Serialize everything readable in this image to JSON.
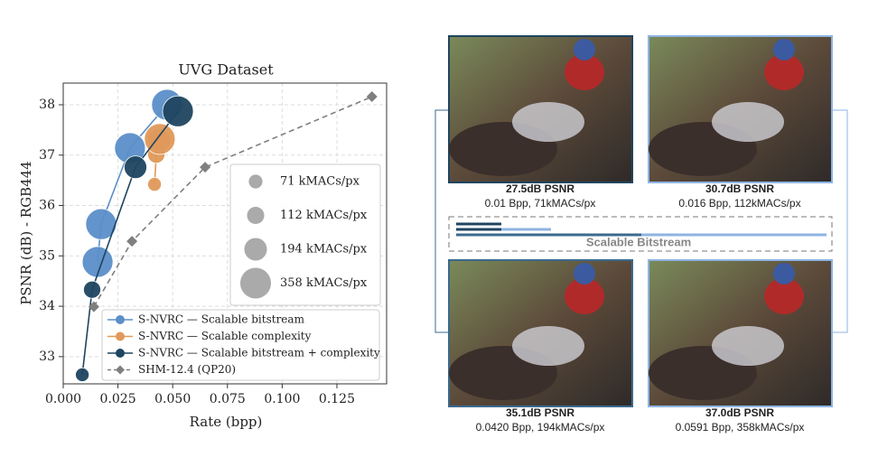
{
  "chart_data": {
    "type": "scatter-line",
    "title": "UVG Dataset",
    "x_label": "Rate (bpp)",
    "y_label": "PSNR (dB) - RGB444",
    "xlim": [
      0,
      0.1477
    ],
    "ylim": [
      32.46,
      38.43
    ],
    "xticks": [
      {
        "value": 0,
        "label": "0.000"
      },
      0.025,
      {
        "value": 0.05,
        "label": "0.050"
      },
      0.075,
      {
        "value": 0.1,
        "label": "0.100"
      },
      0.125
    ],
    "yticks": [
      33,
      34,
      35,
      36,
      37,
      38
    ],
    "grid": true,
    "legend": "lower left",
    "size_legend": [
      {
        "value": 71,
        "label": "71 kMACs/px"
      },
      {
        "value": 112,
        "label": "112 kMACs/px"
      },
      {
        "value": 194,
        "label": "194 kMACs/px"
      },
      {
        "value": 358,
        "label": "358 kMACs/px"
      }
    ],
    "series": [
      {
        "name": "S-NVRC — Scalable bitstream",
        "color": "#5b8fc9",
        "x": [
          0.0157,
          0.0173,
          0.0305,
          0.0474
        ],
        "values": [
          34.88,
          35.63,
          37.14,
          38.0
        ],
        "sizes": [
          358,
          358,
          358,
          358
        ]
      },
      {
        "name": "S-NVRC — Scalable complexity",
        "color": "#e0995a",
        "x": [
          0.0417,
          0.0425,
          0.0438,
          0.0441
        ],
        "values": [
          36.42,
          37.01,
          37.3,
          37.32
        ],
        "sizes": [
          71,
          112,
          194,
          358
        ]
      },
      {
        "name": "S-NVRC — Scalable bitstream + complexity",
        "color": "#1f4560",
        "x": [
          0.0087,
          0.0132,
          0.033,
          0.0524
        ],
        "values": [
          32.64,
          34.33,
          36.76,
          37.87
        ],
        "sizes": [
          71,
          112,
          194,
          358
        ]
      },
      {
        "name": "SHM-12.4 (QP20)",
        "color": "#7f7f7f",
        "x": [
          0.014,
          0.0314,
          0.0648,
          0.141
        ],
        "values": [
          33.99,
          35.29,
          36.76,
          38.16
        ],
        "dashed": true,
        "marker": "diamond"
      }
    ]
  },
  "panels": [
    {
      "psnr": "27.5dB PSNR",
      "detail": "0.01 Bpp, 71kMACs/px"
    },
    {
      "psnr": "30.7dB PSNR",
      "detail": "0.016 Bpp, 112kMACs/px"
    },
    {
      "psnr": "35.1dB PSNR",
      "detail": "0.0420 Bpp, 194kMACs/px"
    },
    {
      "psnr": "37.0dB PSNR",
      "detail": "0.0591 Bpp, 358kMACs/px"
    }
  ],
  "bitstream_label": "Scalable Bitstream"
}
